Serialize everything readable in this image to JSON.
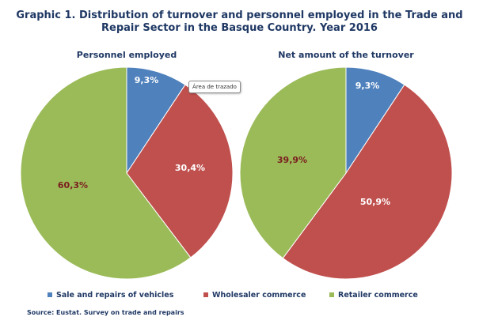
{
  "title_line1": "Graphic 1. Distribution of turnover and personnel employed in the Trade and",
  "title_line2": "Repair Sector in the Basque Country. Year 2016",
  "tooltip": "Área de trazado",
  "source": "Source: Eustat. Survey on trade and repairs",
  "colors": {
    "blue": "#4f81bd",
    "red": "#c0504d",
    "green": "#9bbb59",
    "label_dark": "#7b1e1e",
    "label_white": "#ffffff"
  },
  "legend": [
    {
      "name": "Sale and repairs of vehicles",
      "color": "#4f81bd"
    },
    {
      "name": "Wholesaler commerce",
      "color": "#c0504d"
    },
    {
      "name": "Retailer commerce",
      "color": "#9bbb59"
    }
  ],
  "chart_data": [
    {
      "type": "pie",
      "title": "Personnel employed",
      "categories": [
        "Sale and repairs of vehicles",
        "Wholesaler commerce",
        "Retailer commerce"
      ],
      "values": [
        9.3,
        30.4,
        60.3
      ],
      "labels": [
        "9,3%",
        "30,4%",
        "60,3%"
      ]
    },
    {
      "type": "pie",
      "title": "Net amount of the turnover",
      "categories": [
        "Sale and repairs of vehicles",
        "Wholesaler commerce",
        "Retailer commerce"
      ],
      "values": [
        9.3,
        50.9,
        39.9
      ],
      "labels": [
        "9,3%",
        "50,9%",
        "39,9%"
      ]
    }
  ]
}
